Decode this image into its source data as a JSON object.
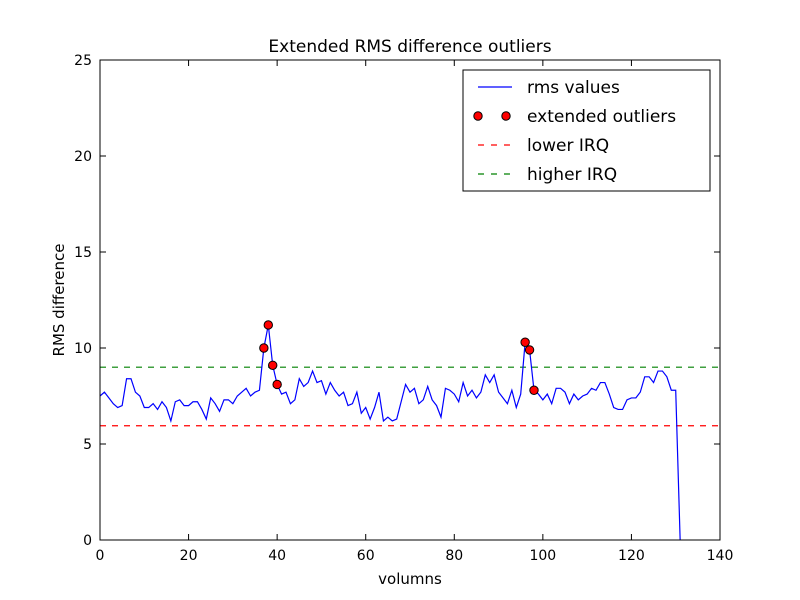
{
  "chart_data": {
    "type": "line",
    "title": "Extended RMS difference outliers",
    "xlabel": "volumns",
    "ylabel": "RMS difference",
    "xlim": [
      0,
      140
    ],
    "ylim": [
      0,
      25
    ],
    "xticks": [
      0,
      20,
      40,
      60,
      80,
      100,
      120,
      140
    ],
    "yticks": [
      0,
      5,
      10,
      15,
      20,
      25
    ],
    "grid": false,
    "legend_position": "top-right",
    "series": [
      {
        "name": "rms values",
        "kind": "line",
        "color": "#0000ff",
        "x": [
          0,
          1,
          2,
          3,
          4,
          5,
          6,
          7,
          8,
          9,
          10,
          11,
          12,
          13,
          14,
          15,
          16,
          17,
          18,
          19,
          20,
          21,
          22,
          23,
          24,
          25,
          26,
          27,
          28,
          29,
          30,
          31,
          32,
          33,
          34,
          35,
          36,
          37,
          38,
          39,
          40,
          41,
          42,
          43,
          44,
          45,
          46,
          47,
          48,
          49,
          50,
          51,
          52,
          53,
          54,
          55,
          56,
          57,
          58,
          59,
          60,
          61,
          62,
          63,
          64,
          65,
          66,
          67,
          68,
          69,
          70,
          71,
          72,
          73,
          74,
          75,
          76,
          77,
          78,
          79,
          80,
          81,
          82,
          83,
          84,
          85,
          86,
          87,
          88,
          89,
          90,
          91,
          92,
          93,
          94,
          95,
          96,
          97,
          98,
          99,
          100,
          101,
          102,
          103,
          104,
          105,
          106,
          107,
          108,
          109,
          110,
          111,
          112,
          113,
          114,
          115,
          116,
          117,
          118,
          119,
          120,
          121,
          122,
          123,
          124,
          125,
          126,
          127,
          128,
          129,
          130,
          131
        ],
        "y": [
          7.5,
          7.7,
          7.4,
          7.1,
          6.9,
          7.0,
          8.4,
          8.4,
          7.7,
          7.5,
          6.9,
          6.9,
          7.1,
          6.8,
          7.2,
          6.9,
          6.2,
          7.2,
          7.3,
          7.0,
          7.0,
          7.2,
          7.2,
          6.8,
          6.3,
          7.4,
          7.1,
          6.7,
          7.3,
          7.3,
          7.1,
          7.5,
          7.7,
          7.9,
          7.5,
          7.7,
          7.8,
          10.0,
          11.2,
          9.1,
          8.1,
          7.6,
          7.7,
          7.1,
          7.3,
          8.4,
          8.0,
          8.2,
          8.8,
          8.2,
          8.3,
          7.6,
          8.2,
          7.8,
          7.5,
          7.7,
          7.0,
          7.1,
          7.7,
          6.6,
          6.9,
          6.3,
          6.9,
          7.7,
          6.2,
          6.4,
          6.2,
          6.3,
          7.2,
          8.1,
          7.7,
          7.9,
          7.1,
          7.3,
          8.0,
          7.3,
          7.0,
          6.4,
          7.9,
          7.8,
          7.6,
          7.2,
          8.2,
          7.5,
          7.8,
          7.4,
          7.7,
          8.6,
          8.2,
          8.6,
          7.7,
          7.4,
          7.1,
          7.8,
          6.9,
          7.6,
          10.3,
          9.9,
          7.8,
          7.6,
          7.3,
          7.6,
          7.1,
          7.9,
          7.9,
          7.7,
          7.1,
          7.6,
          7.3,
          7.5,
          7.6,
          7.9,
          7.8,
          8.2,
          8.2,
          7.6,
          6.9,
          6.8,
          6.8,
          7.3,
          7.4,
          7.4,
          7.7,
          8.5,
          8.5,
          8.2,
          8.8,
          8.8,
          8.5,
          7.8,
          7.8,
          0.0
        ]
      },
      {
        "name": "extended outliers",
        "kind": "markers",
        "color": "#ff0000",
        "x": [
          37,
          38,
          39,
          40,
          96,
          97,
          98
        ],
        "y": [
          10.0,
          11.2,
          9.1,
          8.1,
          10.3,
          9.9,
          7.8
        ]
      },
      {
        "name": "lower IRQ",
        "kind": "hline",
        "color": "#ff0000",
        "y": 5.95
      },
      {
        "name": "higher IRQ",
        "kind": "hline",
        "color": "#008000",
        "y": 9.0
      }
    ]
  }
}
